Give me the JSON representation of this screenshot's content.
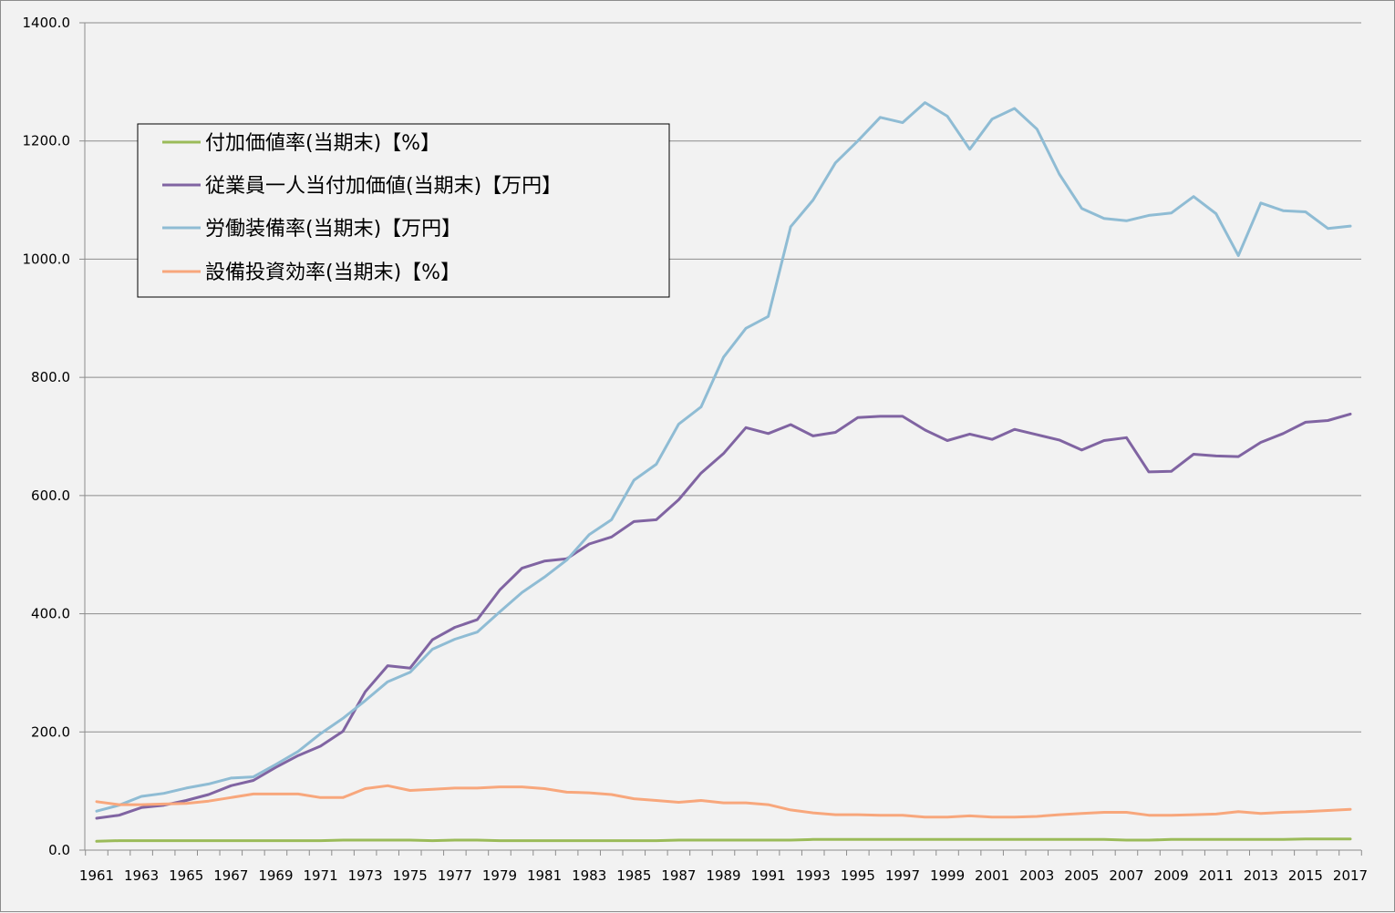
{
  "chart_data": {
    "type": "line",
    "title": "",
    "xlabel": "",
    "ylabel": "",
    "ylim": [
      0,
      1400
    ],
    "y_ticks": [
      "0.0",
      "200.0",
      "400.0",
      "600.0",
      "800.0",
      "1000.0",
      "1200.0",
      "1400.0"
    ],
    "grid": "horizontal",
    "legend_position": "upper-left (inside plot)",
    "x": [
      1961,
      1962,
      1963,
      1964,
      1965,
      1966,
      1967,
      1968,
      1969,
      1970,
      1971,
      1972,
      1973,
      1974,
      1975,
      1976,
      1977,
      1978,
      1979,
      1980,
      1981,
      1982,
      1983,
      1984,
      1985,
      1986,
      1987,
      1988,
      1989,
      1990,
      1991,
      1992,
      1993,
      1994,
      1995,
      1996,
      1997,
      1998,
      1999,
      2000,
      2001,
      2002,
      2003,
      2004,
      2005,
      2006,
      2007,
      2008,
      2009,
      2010,
      2011,
      2012,
      2013,
      2014,
      2015,
      2016,
      2017
    ],
    "x_tick_labels": [
      "1961",
      "1963",
      "1965",
      "1967",
      "1969",
      "1971",
      "1973",
      "1975",
      "1977",
      "1979",
      "1981",
      "1983",
      "1985",
      "1987",
      "1989",
      "1991",
      "1993",
      "1995",
      "1997",
      "1999",
      "2001",
      "2003",
      "2005",
      "2007",
      "2009",
      "2011",
      "2013",
      "2015",
      "2017"
    ],
    "series": [
      {
        "name": "付加価値率(当期末)【%】",
        "color": "#9bbb59",
        "values": [
          15,
          16,
          16,
          16,
          16,
          16,
          16,
          16,
          16,
          16,
          16,
          17,
          17,
          17,
          17,
          16,
          17,
          17,
          16,
          16,
          16,
          16,
          16,
          16,
          16,
          16,
          17,
          17,
          17,
          17,
          17,
          17,
          18,
          18,
          18,
          18,
          18,
          18,
          18,
          18,
          18,
          18,
          18,
          18,
          18,
          18,
          17,
          17,
          18,
          18,
          18,
          18,
          18,
          18,
          19,
          19,
          19
        ]
      },
      {
        "name": "従業員一人当付加価値(当期末)【万円】",
        "color": "#8064a2",
        "values": [
          54,
          59,
          72,
          76,
          84,
          94,
          109,
          118,
          140,
          160,
          176,
          201,
          268,
          312,
          308,
          356,
          377,
          390,
          440,
          477,
          489,
          493,
          518,
          530,
          556,
          559,
          593,
          638,
          671,
          715,
          705,
          720,
          701,
          707,
          732,
          734,
          734,
          711,
          693,
          704,
          695,
          712,
          703,
          694,
          677,
          693,
          698,
          640,
          641,
          670,
          667,
          666,
          690,
          705,
          724,
          727,
          738
        ]
      },
      {
        "name": "労働装備率(当期末)【万円】",
        "color": "#8fbcd4",
        "values": [
          66,
          76,
          91,
          96,
          105,
          112,
          122,
          124,
          145,
          167,
          197,
          223,
          253,
          285,
          301,
          340,
          357,
          369,
          403,
          436,
          462,
          491,
          534,
          559,
          626,
          653,
          721,
          750,
          834,
          883,
          903,
          1055,
          1100,
          1163,
          1200,
          1240,
          1231,
          1265,
          1242,
          1186,
          1237,
          1255,
          1220,
          1144,
          1086,
          1069,
          1065,
          1074,
          1078,
          1106,
          1077,
          1006,
          1095,
          1082,
          1080,
          1052,
          1056
        ]
      },
      {
        "name": "設備投資効率(当期末)【%】",
        "color": "#f8a77c",
        "values": [
          82,
          77,
          77,
          78,
          79,
          83,
          89,
          95,
          95,
          95,
          89,
          89,
          104,
          109,
          101,
          103,
          105,
          105,
          107,
          107,
          104,
          98,
          97,
          94,
          87,
          84,
          81,
          84,
          80,
          80,
          77,
          68,
          63,
          60,
          60,
          59,
          59,
          56,
          56,
          58,
          56,
          56,
          57,
          60,
          62,
          64,
          64,
          59,
          59,
          60,
          61,
          65,
          62,
          64,
          65,
          67,
          69
        ]
      }
    ]
  }
}
